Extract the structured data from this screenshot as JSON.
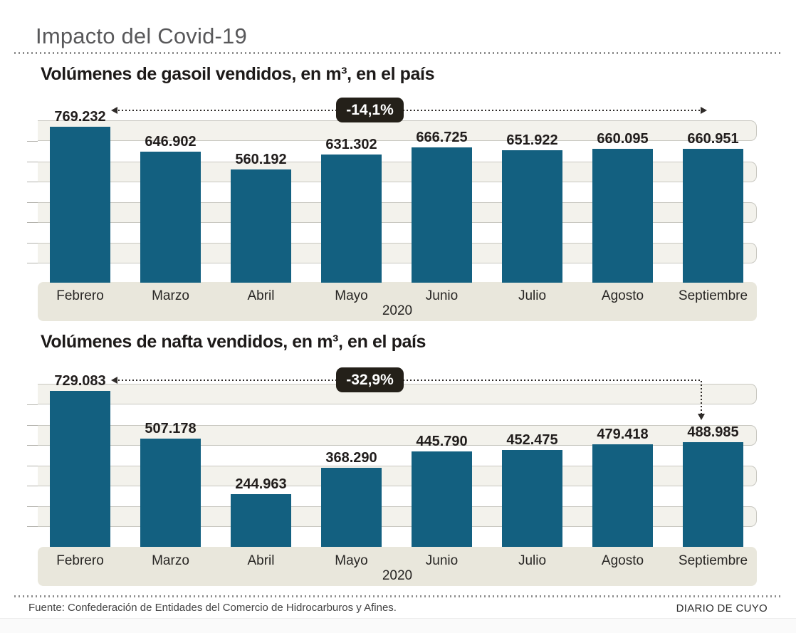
{
  "title": "Impacto del Covid-19",
  "footer": {
    "source": "Fuente: Confederación de Entidades del Comercio de Hidrocarburos y Afines.",
    "credit": "DIARIO DE CUYO"
  },
  "colors": {
    "bar": "#136080",
    "badge_bg": "#242019",
    "band_fill": "#f3f2ec",
    "month_band_fill": "#e9e7dc",
    "title_gray": "#58585a"
  },
  "chart_data": [
    {
      "type": "bar",
      "title": "Volúmenes de gasoil vendidos, en m³, en el país",
      "categories": [
        "Febrero",
        "Marzo",
        "Abril",
        "Mayo",
        "Junio",
        "Julio",
        "Agosto",
        "Septiembre"
      ],
      "values": [
        769232,
        646902,
        560192,
        631302,
        666725,
        651922,
        660095,
        660951
      ],
      "value_labels": [
        "769.232",
        "646.902",
        "560.192",
        "631.302",
        "666.725",
        "651.922",
        "660.095",
        "660.951"
      ],
      "year_label": "2020",
      "change_badge": "-14,1%",
      "ylim": [
        0,
        790000
      ],
      "grid": "horizontal-bands",
      "legend": "none"
    },
    {
      "type": "bar",
      "title": "Volúmenes de nafta vendidos, en m³, en el país",
      "categories": [
        "Febrero",
        "Marzo",
        "Abril",
        "Mayo",
        "Junio",
        "Julio",
        "Agosto",
        "Septiembre"
      ],
      "values": [
        729083,
        507178,
        244963,
        368290,
        445790,
        452475,
        479418,
        488985
      ],
      "value_labels": [
        "729.083",
        "507.178",
        "244.963",
        "368.290",
        "445.790",
        "452.475",
        "479.418",
        "488.985"
      ],
      "year_label": "2020",
      "change_badge": "-32,9%",
      "ylim": [
        0,
        765000
      ],
      "grid": "horizontal-bands",
      "legend": "none"
    }
  ]
}
